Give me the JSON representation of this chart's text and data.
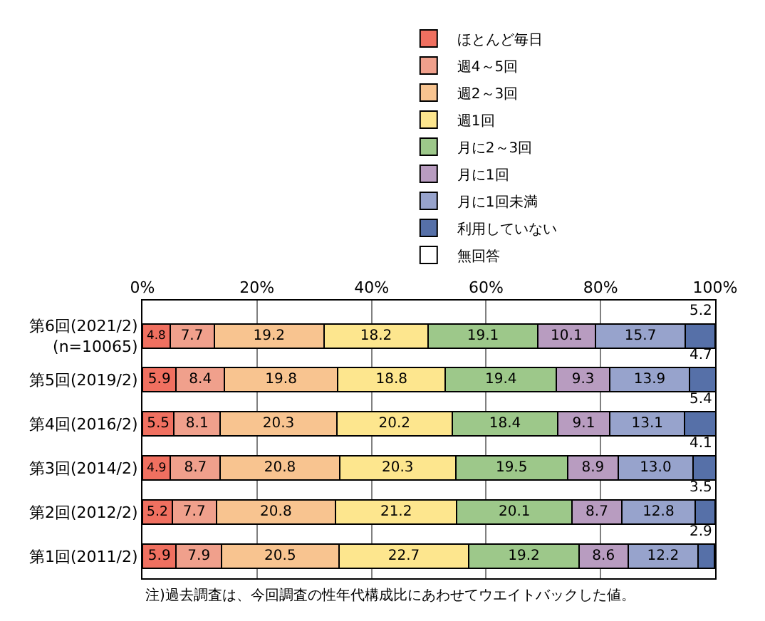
{
  "chart_data": {
    "type": "bar",
    "orientation": "horizontal",
    "stacked": true,
    "grid": "x",
    "legend": "top",
    "categories": [
      "第6回(2021/2)\n(n=10065)",
      "第5回(2019/2)",
      "第4回(2016/2)",
      "第3回(2014/2)",
      "第2回(2012/2)",
      "第1回(2011/2)"
    ],
    "series": [
      {
        "name": "ほとんど毎日",
        "color": "#f07060",
        "values": [
          4.8,
          5.9,
          5.5,
          4.9,
          5.2,
          5.9
        ],
        "value_labels": [
          "4.8",
          "5.9",
          "5.5",
          "4.9",
          "5.2",
          "5.9"
        ]
      },
      {
        "name": "週4～5回",
        "color": "#f0a08c",
        "values": [
          7.7,
          8.4,
          8.1,
          8.7,
          7.7,
          7.9
        ],
        "value_labels": [
          "7.7",
          "8.4",
          "8.1",
          "8.7",
          "7.7",
          "7.9"
        ]
      },
      {
        "name": "週2～3回",
        "color": "#f8c490",
        "values": [
          19.2,
          19.8,
          20.3,
          20.8,
          20.8,
          20.5
        ],
        "value_labels": [
          "19.2",
          "19.8",
          "20.3",
          "20.8",
          "20.8",
          "20.5"
        ]
      },
      {
        "name": "週1回",
        "color": "#fde68e",
        "values": [
          18.2,
          18.8,
          20.2,
          20.3,
          21.2,
          22.7
        ],
        "value_labels": [
          "18.2",
          "18.8",
          "20.2",
          "20.3",
          "21.2",
          "22.7"
        ]
      },
      {
        "name": "月に2～3回",
        "color": "#9dc88a",
        "values": [
          19.1,
          19.4,
          18.4,
          19.5,
          20.1,
          19.2
        ],
        "value_labels": [
          "19.1",
          "19.4",
          "18.4",
          "19.5",
          "20.1",
          "19.2"
        ]
      },
      {
        "name": "月に1回",
        "color": "#b89cc0",
        "values": [
          10.1,
          9.3,
          9.1,
          8.9,
          8.7,
          8.6
        ],
        "value_labels": [
          "10.1",
          "9.3",
          "9.1",
          "8.9",
          "8.7",
          "8.6"
        ]
      },
      {
        "name": "月に1回未満",
        "color": "#97a3cc",
        "values": [
          15.7,
          13.9,
          13.1,
          13.0,
          12.8,
          12.2
        ],
        "value_labels": [
          "15.7",
          "13.9",
          "13.1",
          "13.0",
          "12.8",
          "12.2"
        ]
      },
      {
        "name": "利用していない",
        "color": "#5670a8",
        "values": [
          5.2,
          4.7,
          5.4,
          4.1,
          3.5,
          2.9
        ],
        "value_labels": [
          "5.2",
          "4.7",
          "5.4",
          "4.1",
          "3.5",
          "2.9"
        ]
      },
      {
        "name": "無回答",
        "color": "#ffffff",
        "values": [
          null,
          null,
          null,
          null,
          null,
          null
        ]
      }
    ],
    "xlim": [
      0,
      100
    ],
    "xticks": [
      {
        "value": 0,
        "label": "0%"
      },
      {
        "value": 20,
        "label": "20%"
      },
      {
        "value": 40,
        "label": "40%"
      },
      {
        "value": 60,
        "label": "60%"
      },
      {
        "value": 80,
        "label": "80%"
      },
      {
        "value": 100,
        "label": "100%"
      }
    ],
    "annotations": [
      "注)過去調査は、今回調査の性年代構成比にあわせてウエイトバックした値。"
    ]
  }
}
